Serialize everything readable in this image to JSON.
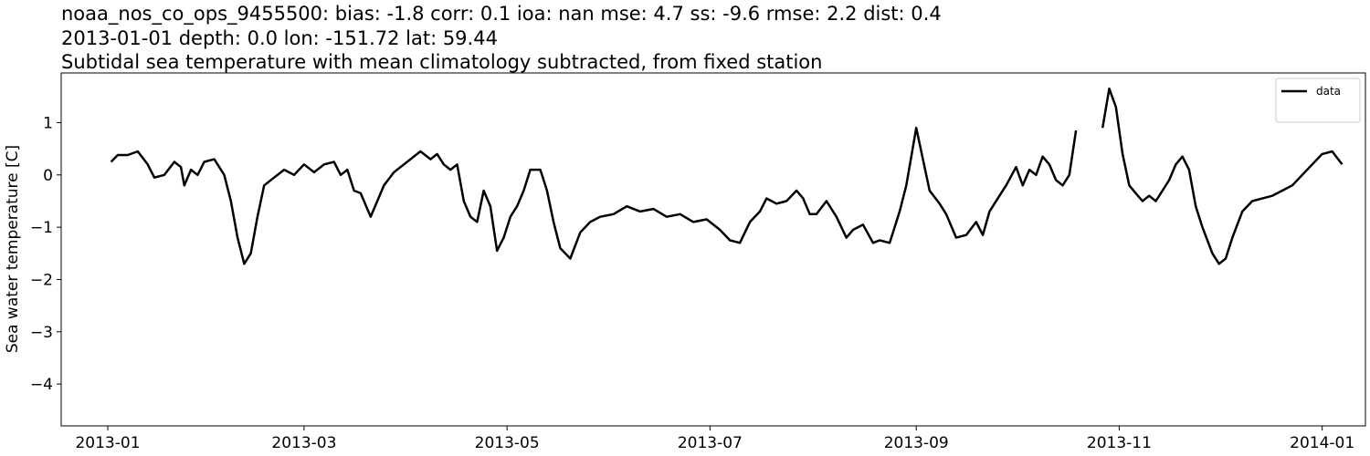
{
  "chart_data": {
    "type": "line",
    "title_lines": [
      "noaa_nos_co_ops_9455500: bias: -1.8  corr: 0.1  ioa: nan  mse: 4.7  ss: -9.6  rmse: 2.2  dist: 0.4",
      "2013-01-01 depth: 0.0 lon: -151.72 lat: 59.44",
      "Subtidal sea temperature with mean climatology subtracted, from fixed station"
    ],
    "xlabel": "",
    "ylabel": "Sea water temperature [C]",
    "x_ticks": [
      "2013-01",
      "2013-03",
      "2013-05",
      "2013-07",
      "2013-09",
      "2013-11",
      "2014-01"
    ],
    "y_ticks": [
      "1",
      "0",
      "−1",
      "−2",
      "−3",
      "−4"
    ],
    "xlim": [
      "2012-12-18",
      "2014-01-14"
    ],
    "ylim": [
      -4.8,
      1.95
    ],
    "grid": false,
    "legend_position": "top-right",
    "colors": {
      "data": "#000000",
      "CIOFS": "#ff0000"
    },
    "series": [
      {
        "name": "data",
        "color": "#000000",
        "segments": [
          [
            [
              "2013-01-02",
              0.25
            ],
            [
              "2013-01-04",
              0.38
            ],
            [
              "2013-01-07",
              0.38
            ],
            [
              "2013-01-10",
              0.45
            ],
            [
              "2013-01-13",
              0.2
            ],
            [
              "2013-01-15",
              -0.05
            ],
            [
              "2013-01-18",
              0.0
            ],
            [
              "2013-01-21",
              0.25
            ],
            [
              "2013-01-23",
              0.15
            ],
            [
              "2013-01-24",
              -0.2
            ],
            [
              "2013-01-26",
              0.1
            ],
            [
              "2013-01-28",
              0.0
            ],
            [
              "2013-01-30",
              0.25
            ],
            [
              "2013-02-02",
              0.3
            ],
            [
              "2013-02-05",
              0.0
            ],
            [
              "2013-02-07",
              -0.5
            ],
            [
              "2013-02-09",
              -1.2
            ],
            [
              "2013-02-11",
              -1.7
            ],
            [
              "2013-02-13",
              -1.5
            ],
            [
              "2013-02-15",
              -0.8
            ],
            [
              "2013-02-17",
              -0.2
            ],
            [
              "2013-02-20",
              -0.05
            ],
            [
              "2013-02-23",
              0.1
            ],
            [
              "2013-02-26",
              0.0
            ],
            [
              "2013-03-01",
              0.2
            ],
            [
              "2013-03-04",
              0.05
            ],
            [
              "2013-03-07",
              0.2
            ],
            [
              "2013-03-10",
              0.25
            ],
            [
              "2013-03-12",
              0.0
            ],
            [
              "2013-03-14",
              0.1
            ],
            [
              "2013-03-16",
              -0.3
            ],
            [
              "2013-03-18",
              -0.35
            ],
            [
              "2013-03-21",
              -0.8
            ],
            [
              "2013-03-23",
              -0.5
            ],
            [
              "2013-03-25",
              -0.2
            ],
            [
              "2013-03-28",
              0.05
            ],
            [
              "2013-03-31",
              0.2
            ],
            [
              "2013-04-03",
              0.35
            ],
            [
              "2013-04-05",
              0.45
            ],
            [
              "2013-04-08",
              0.3
            ],
            [
              "2013-04-10",
              0.4
            ],
            [
              "2013-04-12",
              0.2
            ],
            [
              "2013-04-14",
              0.1
            ],
            [
              "2013-04-16",
              0.2
            ],
            [
              "2013-04-18",
              -0.5
            ],
            [
              "2013-04-20",
              -0.8
            ],
            [
              "2013-04-22",
              -0.9
            ],
            [
              "2013-04-24",
              -0.3
            ],
            [
              "2013-04-26",
              -0.6
            ],
            [
              "2013-04-28",
              -1.45
            ],
            [
              "2013-04-30",
              -1.2
            ],
            [
              "2013-05-02",
              -0.8
            ],
            [
              "2013-05-04",
              -0.6
            ],
            [
              "2013-05-06",
              -0.3
            ],
            [
              "2013-05-08",
              0.1
            ],
            [
              "2013-05-11",
              0.1
            ],
            [
              "2013-05-13",
              -0.3
            ],
            [
              "2013-05-15",
              -0.9
            ],
            [
              "2013-05-17",
              -1.4
            ],
            [
              "2013-05-20",
              -1.6
            ],
            [
              "2013-05-23",
              -1.1
            ],
            [
              "2013-05-26",
              -0.9
            ],
            [
              "2013-05-29",
              -0.8
            ],
            [
              "2013-06-02",
              -0.75
            ],
            [
              "2013-06-06",
              -0.6
            ],
            [
              "2013-06-10",
              -0.7
            ],
            [
              "2013-06-14",
              -0.65
            ],
            [
              "2013-06-18",
              -0.8
            ],
            [
              "2013-06-22",
              -0.75
            ],
            [
              "2013-06-26",
              -0.9
            ],
            [
              "2013-06-30",
              -0.85
            ],
            [
              "2013-07-04",
              -1.05
            ],
            [
              "2013-07-07",
              -1.25
            ],
            [
              "2013-07-10",
              -1.3
            ],
            [
              "2013-07-13",
              -0.9
            ],
            [
              "2013-07-16",
              -0.7
            ],
            [
              "2013-07-18",
              -0.45
            ],
            [
              "2013-07-21",
              -0.55
            ],
            [
              "2013-07-24",
              -0.5
            ],
            [
              "2013-07-27",
              -0.3
            ],
            [
              "2013-07-29",
              -0.45
            ],
            [
              "2013-07-31",
              -0.75
            ],
            [
              "2013-08-02",
              -0.75
            ],
            [
              "2013-08-05",
              -0.5
            ],
            [
              "2013-08-08",
              -0.8
            ],
            [
              "2013-08-11",
              -1.2
            ],
            [
              "2013-08-13",
              -1.05
            ],
            [
              "2013-08-16",
              -0.95
            ],
            [
              "2013-08-19",
              -1.3
            ],
            [
              "2013-08-21",
              -1.25
            ],
            [
              "2013-08-24",
              -1.3
            ],
            [
              "2013-08-27",
              -0.7
            ],
            [
              "2013-08-29",
              -0.2
            ],
            [
              "2013-09-01",
              0.9
            ],
            [
              "2013-09-03",
              0.3
            ],
            [
              "2013-09-05",
              -0.3
            ],
            [
              "2013-09-08",
              -0.55
            ],
            [
              "2013-09-10",
              -0.75
            ],
            [
              "2013-09-13",
              -1.2
            ],
            [
              "2013-09-16",
              -1.15
            ],
            [
              "2013-09-19",
              -0.9
            ],
            [
              "2013-09-21",
              -1.15
            ],
            [
              "2013-09-23",
              -0.7
            ],
            [
              "2013-09-26",
              -0.4
            ],
            [
              "2013-09-28",
              -0.2
            ],
            [
              "2013-10-01",
              0.15
            ],
            [
              "2013-10-03",
              -0.2
            ],
            [
              "2013-10-05",
              0.1
            ],
            [
              "2013-10-07",
              0.0
            ],
            [
              "2013-10-09",
              0.35
            ],
            [
              "2013-10-11",
              0.2
            ],
            [
              "2013-10-13",
              -0.1
            ],
            [
              "2013-10-15",
              -0.2
            ],
            [
              "2013-10-17",
              0.0
            ],
            [
              "2013-10-19",
              0.85
            ]
          ],
          [
            [
              "2013-10-27",
              0.9
            ],
            [
              "2013-10-29",
              1.65
            ],
            [
              "2013-10-31",
              1.3
            ],
            [
              "2013-11-02",
              0.4
            ],
            [
              "2013-11-04",
              -0.2
            ],
            [
              "2013-11-06",
              -0.35
            ],
            [
              "2013-11-08",
              -0.5
            ],
            [
              "2013-11-10",
              -0.4
            ],
            [
              "2013-11-12",
              -0.5
            ],
            [
              "2013-11-14",
              -0.3
            ],
            [
              "2013-11-16",
              -0.1
            ],
            [
              "2013-11-18",
              0.2
            ],
            [
              "2013-11-20",
              0.35
            ],
            [
              "2013-11-22",
              0.1
            ],
            [
              "2013-11-24",
              -0.6
            ],
            [
              "2013-11-26",
              -1.0
            ],
            [
              "2013-11-29",
              -1.5
            ],
            [
              "2013-12-01",
              -1.7
            ],
            [
              "2013-12-03",
              -1.6
            ],
            [
              "2013-12-05",
              -1.2
            ],
            [
              "2013-12-08",
              -0.7
            ],
            [
              "2013-12-11",
              -0.5
            ],
            [
              "2013-12-14",
              -0.45
            ],
            [
              "2013-12-17",
              -0.4
            ],
            [
              "2013-12-20",
              -0.3
            ],
            [
              "2013-12-23",
              -0.2
            ],
            [
              "2013-12-26",
              0.0
            ],
            [
              "2013-12-29",
              0.2
            ],
            [
              "2014-01-01",
              0.4
            ],
            [
              "2014-01-04",
              0.45
            ],
            [
              "2014-01-07",
              0.2
            ]
          ]
        ]
      }
    ]
  }
}
